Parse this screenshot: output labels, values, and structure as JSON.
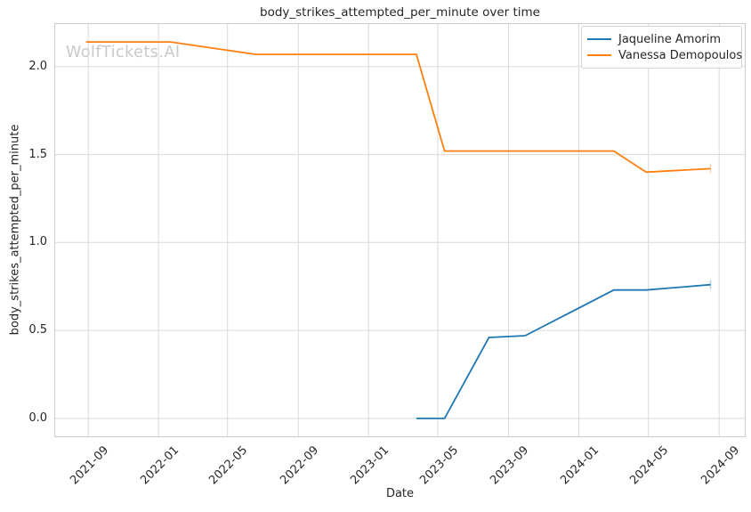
{
  "chart_data": {
    "type": "line",
    "title": "body_strikes_attempted_per_minute over time",
    "xlabel": "Date",
    "ylabel": "body_strikes_attempted_per_minute",
    "watermark": "WolfTickets.AI",
    "grid": true,
    "legend_position": "top-right",
    "ylim": [
      -0.107,
      2.247
    ],
    "xlim": [
      "2021-07-04",
      "2024-10-17"
    ],
    "y_ticks": [
      "0.0",
      "0.5",
      "1.0",
      "1.5",
      "2.0"
    ],
    "x_ticks": [
      {
        "label": "2021-09",
        "date": "2021-09-01"
      },
      {
        "label": "2022-01",
        "date": "2022-01-01"
      },
      {
        "label": "2022-05",
        "date": "2022-05-01"
      },
      {
        "label": "2022-09",
        "date": "2022-09-01"
      },
      {
        "label": "2023-01",
        "date": "2023-01-01"
      },
      {
        "label": "2023-05",
        "date": "2023-05-01"
      },
      {
        "label": "2023-09",
        "date": "2023-09-01"
      },
      {
        "label": "2024-01",
        "date": "2024-01-01"
      },
      {
        "label": "2024-05",
        "date": "2024-05-01"
      },
      {
        "label": "2024-09",
        "date": "2024-09-01"
      }
    ],
    "series": [
      {
        "name": "Jaqueline Amorim",
        "color": "#1f77b4",
        "points": [
          [
            "2023-03-25",
            0.0
          ],
          [
            "2023-05-13",
            0.0
          ],
          [
            "2023-07-29",
            0.46
          ],
          [
            "2023-09-30",
            0.47
          ],
          [
            "2024-03-02",
            0.73
          ],
          [
            "2024-04-27",
            0.73
          ],
          [
            "2024-08-17",
            0.76
          ]
        ]
      },
      {
        "name": "Vanessa Demopoulos",
        "color": "#ff7f0e",
        "points": [
          [
            "2021-08-28",
            2.14
          ],
          [
            "2022-01-22",
            2.14
          ],
          [
            "2022-06-18",
            2.07
          ],
          [
            "2023-03-25",
            2.07
          ],
          [
            "2023-05-13",
            1.52
          ],
          [
            "2024-03-02",
            1.52
          ],
          [
            "2024-04-27",
            1.4
          ],
          [
            "2024-08-17",
            1.42
          ]
        ]
      }
    ]
  }
}
